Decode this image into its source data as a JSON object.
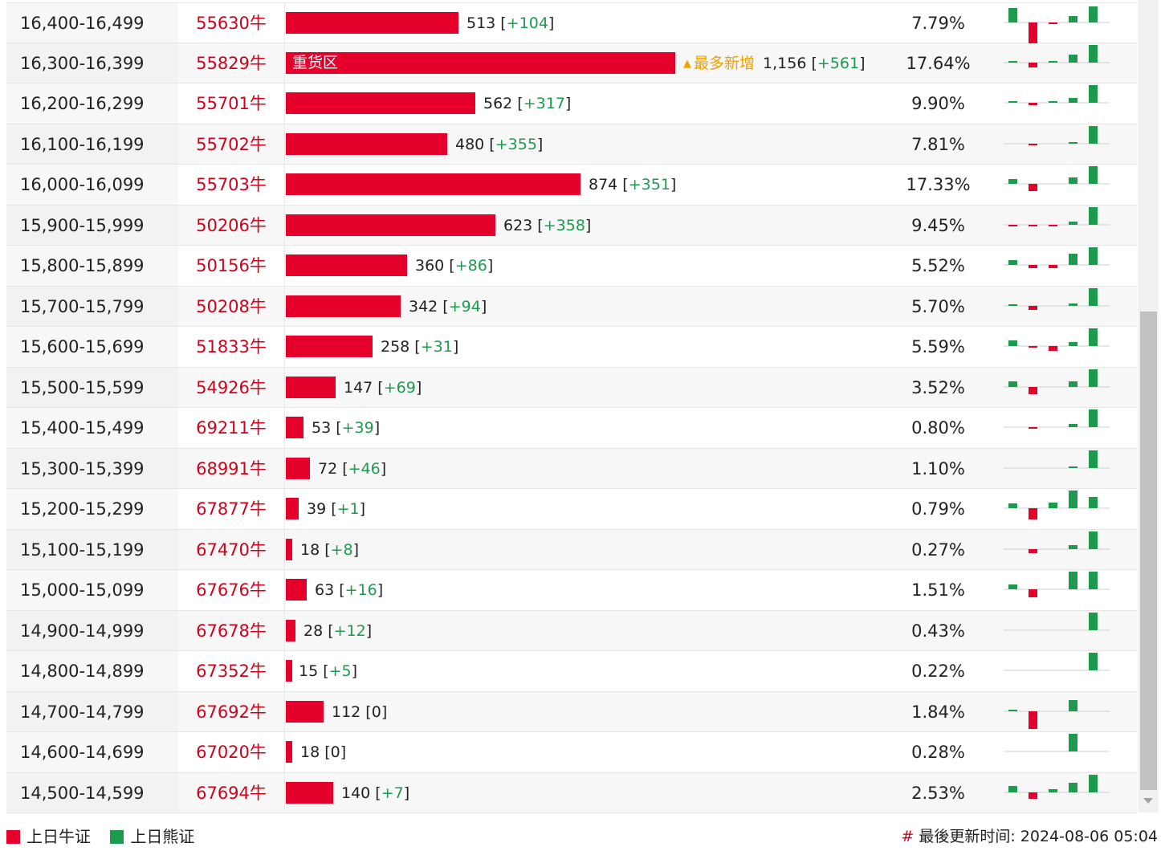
{
  "colors": {
    "bull": "#e4002b",
    "bear": "#1e9a4e",
    "hot": "#f0a000"
  },
  "rows": [
    {
      "range": "16,400-16,499",
      "code": "55630牛",
      "count": "513",
      "change": "+104",
      "count_value": 513,
      "percent": "7.79%",
      "bar_label": "",
      "hot_label": "",
      "spark": [
        0.9,
        -1.3,
        -0.1,
        0.4,
        1.0
      ]
    },
    {
      "range": "16,300-16,399",
      "code": "55829牛",
      "count": "1,156",
      "change": "+561",
      "count_value": 1156,
      "percent": "17.64%",
      "bar_label": "重货区",
      "hot_label": "最多新增",
      "spark": [
        0.1,
        -0.3,
        0.05,
        0.5,
        1.1
      ]
    },
    {
      "range": "16,200-16,299",
      "code": "55701牛",
      "count": "562",
      "change": "+317",
      "count_value": 562,
      "percent": "9.90%",
      "bar_label": "",
      "hot_label": "",
      "spark": [
        0.05,
        -0.15,
        0.05,
        0.3,
        1.1
      ]
    },
    {
      "range": "16,100-16,199",
      "code": "55702牛",
      "count": "480",
      "change": "+355",
      "count_value": 480,
      "percent": "7.81%",
      "bar_label": "",
      "hot_label": "",
      "spark": [
        0.02,
        -0.1,
        0.02,
        0.05,
        1.1
      ]
    },
    {
      "range": "16,000-16,099",
      "code": "55703牛",
      "count": "874",
      "change": "+351",
      "count_value": 874,
      "percent": "17.33%",
      "bar_label": "",
      "hot_label": "",
      "spark": [
        0.3,
        -0.45,
        0.0,
        0.4,
        1.1
      ]
    },
    {
      "range": "15,900-15,999",
      "code": "50206牛",
      "count": "623",
      "change": "+358",
      "count_value": 623,
      "percent": "9.45%",
      "bar_label": "",
      "hot_label": "",
      "spark": [
        -0.1,
        -0.1,
        -0.1,
        0.2,
        1.1
      ]
    },
    {
      "range": "15,800-15,899",
      "code": "50156牛",
      "count": "360",
      "change": "+86",
      "count_value": 360,
      "percent": "5.52%",
      "bar_label": "",
      "hot_label": "",
      "spark": [
        0.3,
        -0.2,
        -0.2,
        0.7,
        1.1
      ]
    },
    {
      "range": "15,700-15,799",
      "code": "50208牛",
      "count": "342",
      "change": "+94",
      "count_value": 342,
      "percent": "5.70%",
      "bar_label": "",
      "hot_label": "",
      "spark": [
        0.1,
        -0.25,
        0.0,
        0.15,
        1.1
      ]
    },
    {
      "range": "15,600-15,699",
      "code": "51833牛",
      "count": "258",
      "change": "+31",
      "count_value": 258,
      "percent": "5.59%",
      "bar_label": "",
      "hot_label": "",
      "spark": [
        0.35,
        -0.1,
        -0.3,
        0.25,
        1.1
      ]
    },
    {
      "range": "15,500-15,599",
      "code": "54926牛",
      "count": "147",
      "change": "+69",
      "count_value": 147,
      "percent": "3.52%",
      "bar_label": "",
      "hot_label": "",
      "spark": [
        0.35,
        -0.45,
        0.0,
        0.35,
        1.1
      ]
    },
    {
      "range": "15,400-15,499",
      "code": "69211牛",
      "count": "53",
      "change": "+39",
      "count_value": 53,
      "percent": "0.80%",
      "bar_label": "",
      "hot_label": "",
      "spark": [
        0.0,
        -0.1,
        0.0,
        0.2,
        1.1
      ]
    },
    {
      "range": "15,300-15,399",
      "code": "68991牛",
      "count": "72",
      "change": "+46",
      "count_value": 72,
      "percent": "1.10%",
      "bar_label": "",
      "hot_label": "",
      "spark": [
        0.02,
        0.0,
        0.02,
        0.05,
        1.1
      ]
    },
    {
      "range": "15,200-15,299",
      "code": "67877牛",
      "count": "39",
      "change": "+1",
      "count_value": 39,
      "percent": "0.79%",
      "bar_label": "",
      "hot_label": "",
      "spark": [
        0.3,
        -0.7,
        0.35,
        1.1,
        0.7
      ]
    },
    {
      "range": "15,100-15,199",
      "code": "67470牛",
      "count": "18",
      "change": "+8",
      "count_value": 18,
      "percent": "0.27%",
      "bar_label": "",
      "hot_label": "",
      "spark": [
        0.0,
        -0.25,
        0.0,
        0.25,
        1.1
      ]
    },
    {
      "range": "15,000-15,099",
      "code": "67676牛",
      "count": "63",
      "change": "+16",
      "count_value": 63,
      "percent": "1.51%",
      "bar_label": "",
      "hot_label": "",
      "spark": [
        0.3,
        -0.5,
        0.0,
        1.1,
        1.1
      ]
    },
    {
      "range": "14,900-14,999",
      "code": "67678牛",
      "count": "28",
      "change": "+12",
      "count_value": 28,
      "percent": "0.43%",
      "bar_label": "",
      "hot_label": "",
      "spark": [
        0.0,
        0.0,
        0.0,
        0.0,
        1.1
      ]
    },
    {
      "range": "14,800-14,899",
      "code": "67352牛",
      "count": "15",
      "change": "+5",
      "count_value": 15,
      "percent": "0.22%",
      "bar_label": "",
      "hot_label": "",
      "spark": [
        0.0,
        0.0,
        0.0,
        0.0,
        1.1
      ]
    },
    {
      "range": "14,700-14,799",
      "code": "67692牛",
      "count": "112",
      "change": "0",
      "count_value": 112,
      "percent": "1.84%",
      "bar_label": "",
      "hot_label": "",
      "spark": [
        0.1,
        -1.1,
        0.0,
        0.7,
        0.0
      ]
    },
    {
      "range": "14,600-14,699",
      "code": "67020牛",
      "count": "18",
      "change": "0",
      "count_value": 18,
      "percent": "0.28%",
      "bar_label": "",
      "hot_label": "",
      "spark": [
        0.0,
        0.0,
        0.0,
        1.1,
        0.0
      ]
    },
    {
      "range": "14,500-14,599",
      "code": "67694牛",
      "count": "140",
      "change": "+7",
      "count_value": 140,
      "percent": "2.53%",
      "bar_label": "",
      "hot_label": "",
      "spark": [
        0.4,
        -0.4,
        0.2,
        0.6,
        1.1
      ]
    }
  ],
  "legend": {
    "bull_label": "上日牛证",
    "bear_label": "上日熊证"
  },
  "footer": {
    "hash": "#",
    "updated_label": "最後更新时间: 2024-08-06 05:04"
  }
}
